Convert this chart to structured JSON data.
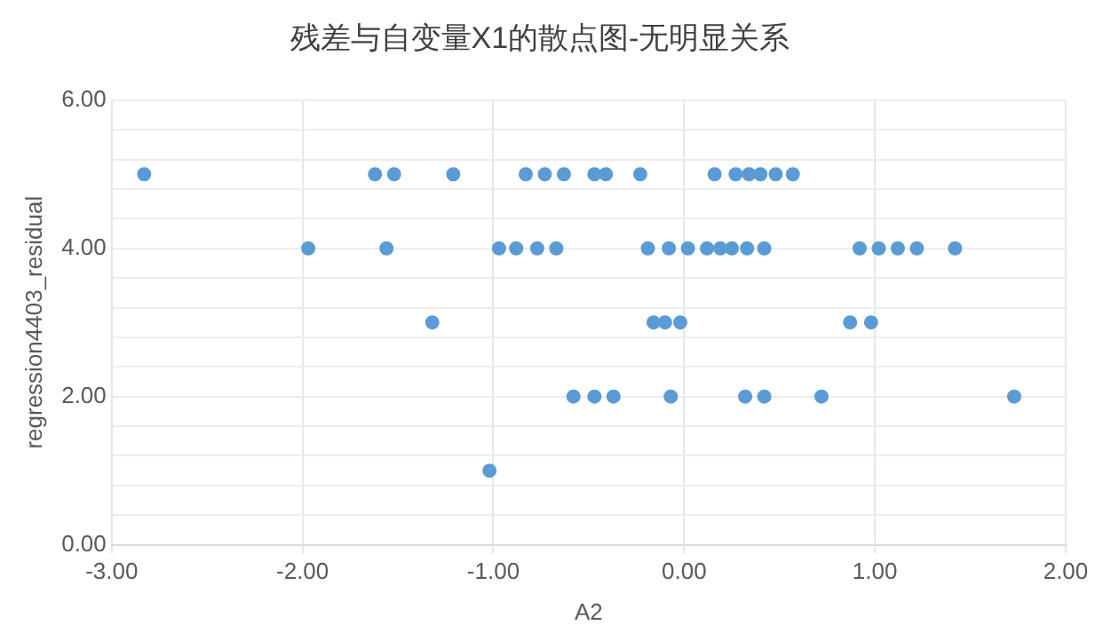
{
  "chart_data": {
    "type": "scatter",
    "title": "残差与自变量X1的散点图-无明显关系",
    "xlabel": "A2",
    "ylabel": "regression4403_residual",
    "marker": "circle",
    "grid": true,
    "legend": false,
    "xlim": [
      -3,
      2
    ],
    "xticks": [
      {
        "value": -3,
        "label": "-3.00"
      },
      {
        "value": -2,
        "label": "-2.00"
      },
      {
        "value": -1,
        "label": "-1.00"
      },
      {
        "value": 0,
        "label": "0.00"
      },
      {
        "value": 1,
        "label": "1.00"
      },
      {
        "value": 2,
        "label": "2.00"
      }
    ],
    "ylim": [
      0,
      6
    ],
    "yticks": [
      {
        "value": 0,
        "label": "0.00"
      },
      {
        "value": 0.4,
        "label": null
      },
      {
        "value": 0.8,
        "label": null
      },
      {
        "value": 1.2,
        "label": null
      },
      {
        "value": 1.6,
        "label": null
      },
      {
        "value": 2,
        "label": "2.00"
      },
      {
        "value": 2.4,
        "label": null
      },
      {
        "value": 2.8,
        "label": null
      },
      {
        "value": 3.2,
        "label": null
      },
      {
        "value": 3.6,
        "label": null
      },
      {
        "value": 4,
        "label": "4.00"
      },
      {
        "value": 4.4,
        "label": null
      },
      {
        "value": 4.8,
        "label": null
      },
      {
        "value": 5.2,
        "label": null
      },
      {
        "value": 5.6,
        "label": null
      },
      {
        "value": 6,
        "label": "6.00"
      }
    ],
    "series": [
      {
        "color": "#5b9bd5",
        "x": [
          -2.83,
          -1.62,
          -1.52,
          -1.21,
          -0.83,
          -0.73,
          -0.63,
          -0.47,
          -0.41,
          -0.23,
          0.16,
          0.27,
          0.34,
          0.4,
          0.48,
          0.57,
          -1.97,
          -1.56,
          -0.97,
          -0.88,
          -0.77,
          -0.67,
          -0.19,
          -0.08,
          0.02,
          0.12,
          0.19,
          0.25,
          0.33,
          0.42,
          0.92,
          1.02,
          1.12,
          1.22,
          1.42,
          -1.32,
          -0.16,
          -0.1,
          -0.02,
          0.87,
          0.98,
          -0.58,
          -0.47,
          -0.37,
          -0.07,
          0.32,
          0.42,
          0.72,
          1.73,
          -1.02
        ],
        "values": [
          5,
          5,
          5,
          5,
          5,
          5,
          5,
          5,
          5,
          5,
          5,
          5,
          5,
          5,
          5,
          5,
          4,
          4,
          4,
          4,
          4,
          4,
          4,
          4,
          4,
          4,
          4,
          4,
          4,
          4,
          4,
          4,
          4,
          4,
          4,
          3,
          3,
          3,
          3,
          3,
          3,
          2,
          2,
          2,
          2,
          2,
          2,
          2,
          2,
          1
        ]
      }
    ]
  }
}
